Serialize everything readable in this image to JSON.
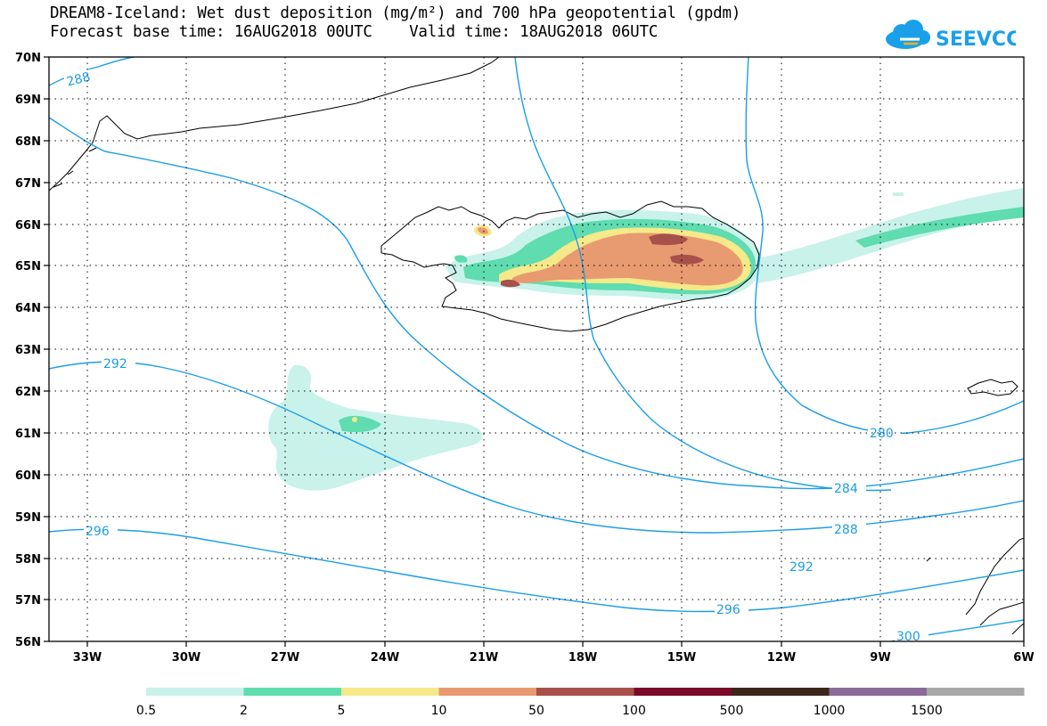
{
  "title": {
    "line1": "DREAM8-Iceland: Wet dust deposition (mg/m²) and 700 hPa geopotential (gpdm)",
    "line2": "Forecast base time: 16AUG2018 00UTC    Valid time: 18AUG2018 06UTC"
  },
  "logo": {
    "text": "SEEVCCC",
    "color": "#1aa0e8"
  },
  "map": {
    "lat_labels": [
      "70N",
      "69N",
      "68N",
      "67N",
      "66N",
      "65N",
      "64N",
      "63N",
      "62N",
      "61N",
      "60N",
      "59N",
      "58N",
      "57N",
      "56N"
    ],
    "lon_labels": [
      "33W",
      "30W",
      "27W",
      "24W",
      "21W",
      "18W",
      "15W",
      "12W",
      "9W",
      "6W"
    ],
    "contour_color": "#1a9ee8",
    "contour_labels": [
      "288",
      "292",
      "296",
      "280",
      "284",
      "288",
      "292",
      "296",
      "300"
    ]
  },
  "legend": {
    "labels": [
      "0.5",
      "2",
      "5",
      "10",
      "50",
      "100",
      "500",
      "1000",
      "1500"
    ],
    "colors": [
      "#c8f2ea",
      "#5fdcb0",
      "#f5e98a",
      "#e89a70",
      "#a8504a",
      "#7a0a28",
      "#3c2618",
      "#8a6a98",
      "#a8a8a8"
    ]
  }
}
